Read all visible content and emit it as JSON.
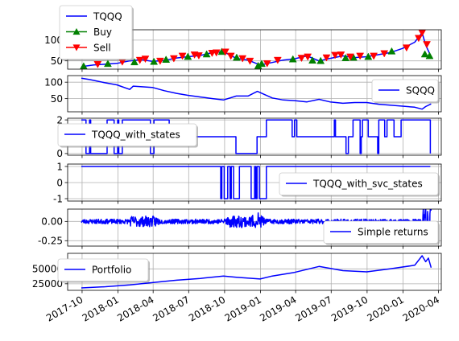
{
  "chart_data": [
    {
      "type": "line",
      "series": [
        {
          "name": "TQQQ",
          "color": "#0000ff",
          "x": [
            "2017-09-29",
            "2017-10-31",
            "2017-11-30",
            "2017-12-29",
            "2018-01-31",
            "2018-02-28",
            "2018-03-30",
            "2018-04-30",
            "2018-05-31",
            "2018-06-29",
            "2018-07-31",
            "2018-08-31",
            "2018-09-28",
            "2018-10-31",
            "2018-11-30",
            "2018-12-31",
            "2019-01-31",
            "2019-02-28",
            "2019-03-29",
            "2019-04-30",
            "2019-05-31",
            "2019-06-28",
            "2019-07-31",
            "2019-08-30",
            "2019-09-30",
            "2019-10-31",
            "2019-11-29",
            "2019-12-31",
            "2020-01-31",
            "2020-02-19",
            "2020-02-28",
            "2020-03-13"
          ],
          "values": [
            36,
            40,
            42,
            44,
            50,
            53,
            49,
            51,
            57,
            60,
            63,
            70,
            72,
            56,
            52,
            40,
            46,
            52,
            55,
            62,
            50,
            56,
            62,
            58,
            60,
            65,
            70,
            80,
            95,
            118,
            88,
            60
          ]
        }
      ],
      "markers": [
        {
          "name": "Buy",
          "color": "#008000",
          "shape": "triangle-up",
          "x": [
            "2017-10-05",
            "2017-12-06",
            "2018-02-12",
            "2018-04-03",
            "2018-05-04",
            "2018-06-29",
            "2018-08-16",
            "2018-09-24",
            "2018-11-01",
            "2018-12-26",
            "2019-01-04",
            "2019-03-25",
            "2019-05-14",
            "2019-06-04",
            "2019-08-07",
            "2019-08-27",
            "2019-10-04",
            "2019-12-03",
            "2020-02-26",
            "2020-03-09"
          ],
          "values": [
            37,
            43,
            47,
            48,
            53,
            60,
            66,
            72,
            58,
            38,
            43,
            54,
            51,
            50,
            57,
            58,
            60,
            73,
            66,
            62
          ]
        },
        {
          "name": "Sell",
          "color": "#ff0000",
          "shape": "triangle-down",
          "x": [
            "2017-11-10",
            "2018-01-12",
            "2018-02-26",
            "2018-03-12",
            "2018-04-19",
            "2018-05-24",
            "2018-06-15",
            "2018-07-16",
            "2018-07-27",
            "2018-08-30",
            "2018-09-10",
            "2018-10-03",
            "2018-10-17",
            "2018-11-16",
            "2018-12-05",
            "2019-01-18",
            "2019-02-14",
            "2019-04-16",
            "2019-05-02",
            "2019-06-19",
            "2019-07-11",
            "2019-07-26",
            "2019-08-19",
            "2019-09-13",
            "2019-10-18",
            "2019-11-14",
            "2020-01-10",
            "2020-02-10",
            "2020-02-19",
            "2020-03-02"
          ],
          "values": [
            42,
            48,
            52,
            55,
            50,
            56,
            62,
            65,
            63,
            69,
            70,
            72,
            62,
            56,
            50,
            44,
            52,
            57,
            60,
            58,
            64,
            65,
            60,
            62,
            62,
            68,
            82,
            105,
            118,
            90
          ]
        }
      ],
      "legend": [
        "TQQQ",
        "Buy",
        "Sell"
      ],
      "legend_placement": "top-left (above axes)",
      "ylim": [
        30,
        125
      ],
      "yticks": [
        50,
        100
      ],
      "grid": true
    },
    {
      "type": "line",
      "series": [
        {
          "name": "SQQQ",
          "color": "#0000ff",
          "x": [
            "2017-09-29",
            "2017-10-20",
            "2017-11-30",
            "2017-12-29",
            "2018-01-31",
            "2018-02-09",
            "2018-03-30",
            "2018-04-30",
            "2018-05-31",
            "2018-06-29",
            "2018-07-31",
            "2018-08-31",
            "2018-09-28",
            "2018-10-31",
            "2018-11-30",
            "2018-12-24",
            "2019-01-31",
            "2019-02-28",
            "2019-03-29",
            "2019-04-30",
            "2019-05-31",
            "2019-06-28",
            "2019-07-31",
            "2019-08-30",
            "2019-09-30",
            "2019-10-31",
            "2019-11-29",
            "2019-12-31",
            "2020-01-31",
            "2020-02-19",
            "2020-02-28",
            "2020-03-13"
          ],
          "values": [
            112,
            108,
            98,
            92,
            78,
            88,
            84,
            74,
            66,
            60,
            55,
            50,
            46,
            58,
            58,
            72,
            52,
            46,
            44,
            40,
            48,
            40,
            36,
            38,
            38,
            33,
            30,
            27,
            24,
            18,
            26,
            34
          ]
        }
      ],
      "legend": [
        "SQQQ"
      ],
      "legend_placement": "right",
      "ylim": [
        10,
        120
      ],
      "yticks": [
        50,
        100
      ],
      "grid": true
    },
    {
      "type": "line",
      "series": [
        {
          "name": "TQQQ_with_states",
          "color": "#0000ff",
          "pattern": "regime-switching step signal"
        }
      ],
      "legend": [
        "TQQQ_with_states"
      ],
      "legend_placement": "left",
      "ylim": [
        -0.1,
        2.1
      ],
      "yticks": [
        0,
        2
      ],
      "grid": true
    },
    {
      "type": "line",
      "series": [
        {
          "name": "TQQQ_with_svc_states",
          "color": "#0000ff",
          "pattern": "step signal between 1 and -1"
        }
      ],
      "legend": [
        "TQQQ_with_svc_states"
      ],
      "legend_placement": "right",
      "ylim": [
        -1.15,
        1.15
      ],
      "yticks": [
        1,
        0,
        -1
      ],
      "grid": true
    },
    {
      "type": "line",
      "series": [
        {
          "name": "Simple returns",
          "color": "#0000ff",
          "pattern": "noisy daily returns around 0"
        }
      ],
      "legend": [
        "Simple returns"
      ],
      "legend_placement": "lower-right",
      "ylim": [
        -0.32,
        0.16
      ],
      "yticks": [
        "0.00",
        "-0.25"
      ],
      "grid": true
    },
    {
      "type": "line",
      "series": [
        {
          "name": "Portfolio",
          "color": "#0000ff",
          "x": [
            "2017-09-29",
            "2017-11-30",
            "2018-01-31",
            "2018-03-30",
            "2018-05-31",
            "2018-07-31",
            "2018-09-28",
            "2018-10-31",
            "2018-12-31",
            "2019-01-31",
            "2019-03-29",
            "2019-05-31",
            "2019-07-31",
            "2019-09-30",
            "2019-11-29",
            "2020-01-31",
            "2020-02-19",
            "2020-02-28",
            "2020-03-06",
            "2020-03-13"
          ],
          "values": [
            18000,
            20000,
            23000,
            27000,
            31000,
            34000,
            38000,
            36000,
            33000,
            38000,
            44000,
            54000,
            47000,
            45000,
            50000,
            56000,
            72000,
            62000,
            68000,
            52000
          ]
        }
      ],
      "legend": [
        "Portfolio"
      ],
      "legend_placement": "top-left",
      "ylim": [
        14000,
        76000
      ],
      "yticks": [
        "50000",
        "25000"
      ],
      "grid": true
    }
  ],
  "x_axis": {
    "shared": true,
    "range": [
      "2017-08-25",
      "2020-04-08"
    ],
    "ticks": [
      {
        "date": "2017-10-01",
        "label": "2017-10"
      },
      {
        "date": "2018-01-01",
        "label": "2018-01"
      },
      {
        "date": "2018-04-01",
        "label": "2018-04"
      },
      {
        "date": "2018-07-01",
        "label": "2018-07"
      },
      {
        "date": "2018-10-01",
        "label": "2018-10"
      },
      {
        "date": "2019-01-01",
        "label": "2019-01"
      },
      {
        "date": "2019-04-01",
        "label": "2019-04"
      },
      {
        "date": "2019-07-01",
        "label": "2019-07"
      },
      {
        "date": "2019-10-01",
        "label": "2019-10"
      },
      {
        "date": "2020-01-01",
        "label": "2020-01"
      },
      {
        "date": "2020-04-01",
        "label": "2020-04"
      }
    ]
  }
}
